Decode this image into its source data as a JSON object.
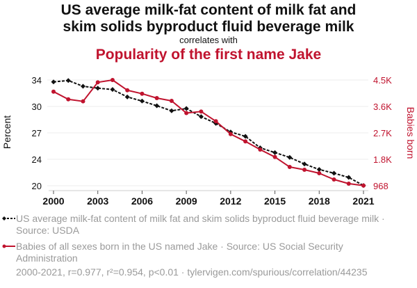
{
  "header": {
    "title_line1": "US average milk-fat content of milk fat and",
    "title_line2": "skim solids byproduct fluid beverage milk",
    "subtitle": "correlates with",
    "title2": "Popularity of the first name Jake"
  },
  "colors": {
    "series1": "#111111",
    "series2": "#c0132e",
    "muted": "#9a9a9a",
    "grid": "#eeeeee"
  },
  "legend": {
    "items": [
      {
        "label": "US average milk-fat content of milk fat and skim solids byproduct fluid beverage milk · Source: USDA",
        "marker": "diamond-dashed"
      },
      {
        "label": "Babies of all sexes born in the US named Jake · Source: US Social Security Administration",
        "marker": "dot-solid"
      }
    ]
  },
  "footer": {
    "text": "2000-2021, r=0.977, r²=0.954, p<0.01 · tylervigen.com/spurious/correlation/44235"
  },
  "chart_data": {
    "type": "line",
    "x": [
      2000,
      2001,
      2002,
      2003,
      2004,
      2005,
      2006,
      2007,
      2008,
      2009,
      2010,
      2011,
      2012,
      2013,
      2014,
      2015,
      2016,
      2017,
      2018,
      2019,
      2020,
      2021
    ],
    "xticks": [
      2000,
      2003,
      2006,
      2009,
      2012,
      2015,
      2018,
      2021
    ],
    "xlim": [
      2000,
      2021
    ],
    "ylabel_left": "Percent",
    "ylabel_right": "Babies born",
    "y_left_lim": [
      20,
      34
    ],
    "y_left_ticks": [
      {
        "value": 34,
        "label": "34"
      },
      {
        "value": 30.5,
        "label": "30"
      },
      {
        "value": 27,
        "label": "27"
      },
      {
        "value": 23.5,
        "label": "24"
      },
      {
        "value": 20,
        "label": "20"
      }
    ],
    "y_right_lim": [
      968,
      4500
    ],
    "y_right_ticks": [
      {
        "value": 4500,
        "label": "4.5K"
      },
      {
        "value": 3617,
        "label": "3.6K"
      },
      {
        "value": 2734,
        "label": "2.7K"
      },
      {
        "value": 1851,
        "label": "1.8K"
      },
      {
        "value": 968,
        "label": "968"
      }
    ],
    "grid": true,
    "series": [
      {
        "name": "US average milk-fat content of milk fat and skim solids byproduct fluid beverage milk",
        "axis": "left",
        "style": "dashed",
        "marker": "diamond",
        "values": [
          33.75,
          33.93,
          33.17,
          32.92,
          32.74,
          31.76,
          31.21,
          30.59,
          29.92,
          30.22,
          29.15,
          28.26,
          27.12,
          26.54,
          25.02,
          24.39,
          23.75,
          22.88,
          22.15,
          21.66,
          21.1,
          20.03
        ]
      },
      {
        "name": "Babies of all sexes born in the US named Jake",
        "axis": "right",
        "style": "solid",
        "marker": "circle",
        "values": [
          4112,
          3856,
          3787,
          4423,
          4500,
          4158,
          4042,
          3896,
          3803,
          3396,
          3447,
          3122,
          2694,
          2448,
          2176,
          1928,
          1595,
          1502,
          1386,
          1177,
          1038,
          975
        ]
      }
    ]
  }
}
